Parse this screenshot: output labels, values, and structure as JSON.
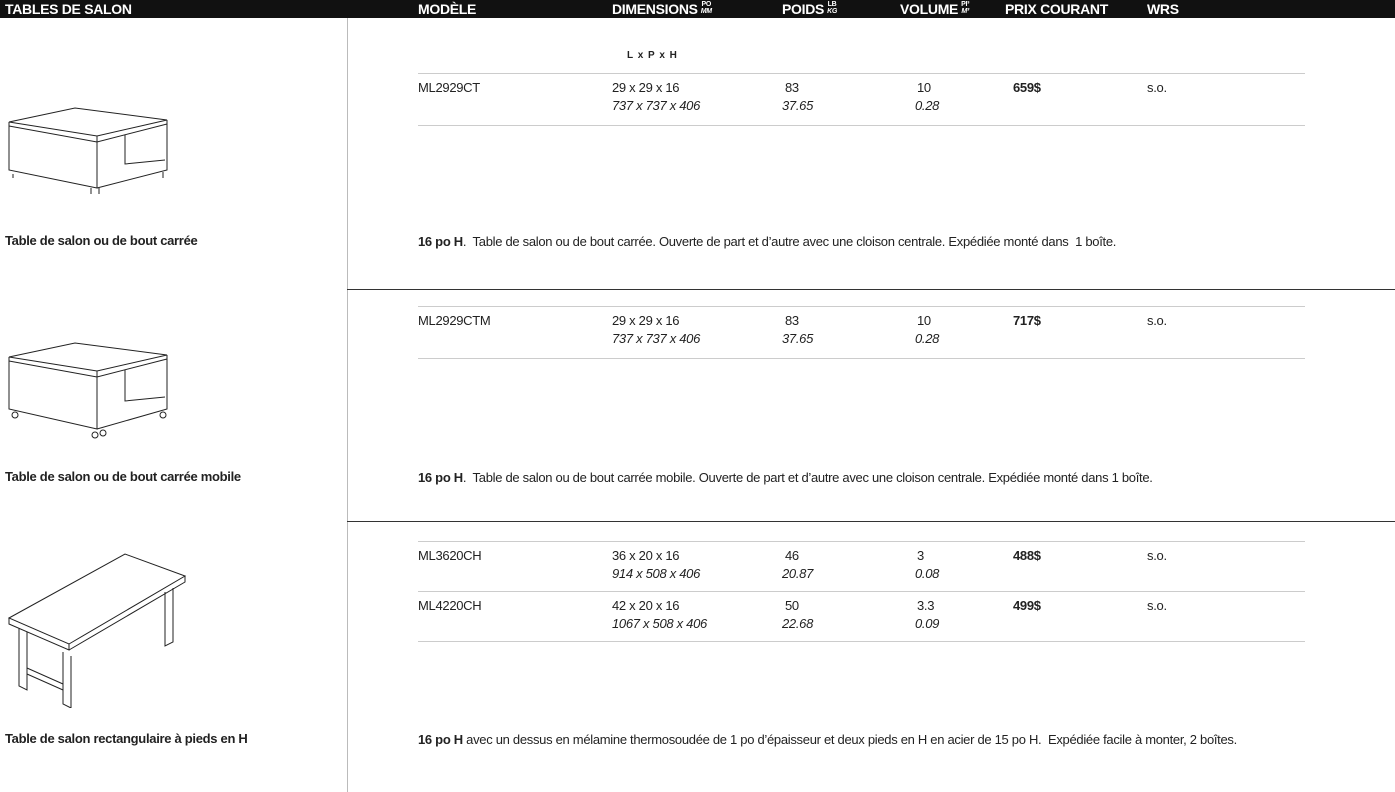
{
  "header": {
    "title": "TABLES DE SALON",
    "columns": [
      {
        "label": "MODÈLE"
      },
      {
        "label": "DIMENSIONS",
        "unit_top": "PO",
        "unit_bottom": "MM"
      },
      {
        "label": "POIDS",
        "unit_top": "LB",
        "unit_bottom": "KG"
      },
      {
        "label": "VOLUME",
        "unit_top": "PI³",
        "unit_bottom": "M³"
      },
      {
        "label": "PRIX COURANT"
      },
      {
        "label": "WRS"
      }
    ],
    "dimensions_note": "L x P x H"
  },
  "sections": [
    {
      "name": "Table de salon ou de bout carrée",
      "rows": [
        {
          "model": "ML2929CT",
          "dimensions_in": "29 x 29 x 16",
          "dimensions_mm": "737 x 737 x 406",
          "weight_lb": "83",
          "weight_kg": "37.65",
          "volume_ft3": "10",
          "volume_m3": "0.28",
          "price": "659$",
          "wrs": "s.o."
        }
      ],
      "description_lead": "16 po H",
      "description": ".  Table de salon ou de bout carrée. Ouverte de part et d’autre avec une cloison centrale. Expédiée monté dans  1 boîte."
    },
    {
      "name": "Table de salon ou de bout carrée mobile",
      "rows": [
        {
          "model": "ML2929CTM",
          "dimensions_in": "29 x 29 x 16",
          "dimensions_mm": "737 x 737 x 406",
          "weight_lb": "83",
          "weight_kg": "37.65",
          "volume_ft3": "10",
          "volume_m3": "0.28",
          "price": "717$",
          "wrs": "s.o."
        }
      ],
      "description_lead": "16 po H",
      "description": ".  Table de salon ou de bout carrée mobile. Ouverte de part et d’autre avec une cloison centrale. Expédiée monté dans 1 boîte."
    },
    {
      "name": "Table de salon rectangulaire à pieds en H",
      "rows": [
        {
          "model": "ML3620CH",
          "dimensions_in": "36 x 20 x 16",
          "dimensions_mm": "914 x 508 x 406",
          "weight_lb": "46",
          "weight_kg": "20.87",
          "volume_ft3": "3",
          "volume_m3": "0.08",
          "price": "488$",
          "wrs": "s.o."
        },
        {
          "model": "ML4220CH",
          "dimensions_in": "42 x 20 x 16",
          "dimensions_mm": "1067 x 508 x 406",
          "weight_lb": "50",
          "weight_kg": "22.68",
          "volume_ft3": "3.3",
          "volume_m3": "0.09",
          "price": "499$",
          "wrs": "s.o."
        }
      ],
      "description_lead": "16 po H",
      "description": " avec un dessus en mélamine thermosoudée de 1 po d’épaisseur et deux pieds en H en acier de 15 po H.  Expédiée facile à monter, 2 boîtes."
    }
  ]
}
